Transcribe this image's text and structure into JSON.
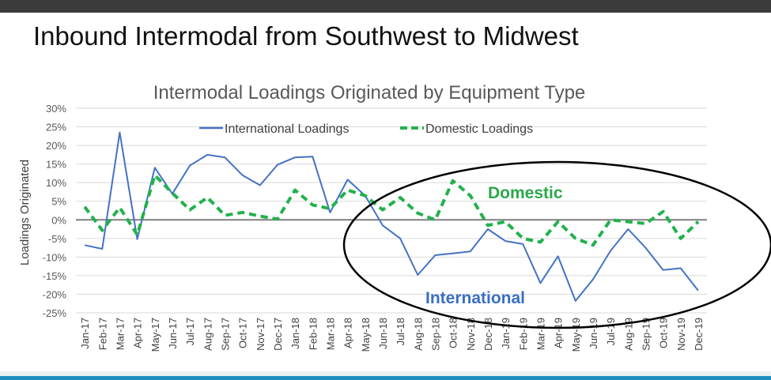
{
  "slide": {
    "title": "Inbound Intermodal from Southwest to Midwest"
  },
  "colors": {
    "top_bar": "#3b3b3b",
    "bottom_bar": "#1f8fc0",
    "international": "#4472c4",
    "domestic": "#22b14c",
    "domestic_label": "#2aa84a",
    "international_label": "#3a6fc4",
    "grid": "#d9d9d9",
    "zero_line": "#7f7f7f"
  },
  "annotations": {
    "domestic": "Domestic",
    "international": "International"
  },
  "chart_data": {
    "type": "line",
    "title": "Intermodal Loadings Originated by Equipment Type",
    "xlabel": "",
    "ylabel": "Loadings Originated",
    "ylim": [
      -25,
      30
    ],
    "yticks": [
      30,
      25,
      20,
      15,
      10,
      5,
      0,
      -5,
      -10,
      -15,
      -20,
      -25
    ],
    "ytick_labels": [
      "30%",
      "25%",
      "20%",
      "15%",
      "10%",
      "5%",
      "0%",
      "-5%",
      "-10%",
      "-15%",
      "-20%",
      "-25%"
    ],
    "grid": true,
    "legend_placement": "top",
    "categories": [
      "Jan-17",
      "Feb-17",
      "Mar-17",
      "Apr-17",
      "May-17",
      "Jun-17",
      "Jul-17",
      "Aug-17",
      "Sep-17",
      "Oct-17",
      "Nov-17",
      "Dec-17",
      "Jan-18",
      "Feb-18",
      "Mar-18",
      "Apr-18",
      "May-18",
      "Jun-18",
      "Jul-18",
      "Aug-18",
      "Sep-18",
      "Oct-18",
      "Nov-18",
      "Dec-18",
      "Jan-19",
      "Feb-19",
      "Mar-19",
      "Apr-19",
      "May-19",
      "Jun-19",
      "Jul-19",
      "Aug-19",
      "Sep-19",
      "Oct-19",
      "Nov-19",
      "Dec-19"
    ],
    "series": [
      {
        "name": "International Loadings",
        "style": "solid",
        "values": [
          -6.8,
          -7.8,
          23.5,
          -5.2,
          14.0,
          7.0,
          14.6,
          17.5,
          16.8,
          12.0,
          9.3,
          14.8,
          16.8,
          17.0,
          2.0,
          10.8,
          6.5,
          -1.5,
          -5.0,
          -14.8,
          -9.5,
          -9.0,
          -8.5,
          -2.5,
          -5.7,
          -6.5,
          -17.0,
          -9.8,
          -21.8,
          -16.0,
          -8.3,
          -2.5,
          -7.5,
          -13.5,
          -13.0,
          -19.0
        ]
      },
      {
        "name": "Domestic Loadings",
        "style": "dashed",
        "values": [
          3.5,
          -2.8,
          3.3,
          -4.0,
          12.0,
          7.2,
          2.7,
          6.0,
          1.2,
          2.0,
          1.0,
          0.2,
          8.0,
          4.0,
          3.0,
          8.0,
          6.5,
          2.7,
          6.0,
          1.8,
          0.0,
          10.5,
          6.5,
          -1.5,
          -0.5,
          -5.0,
          -6.0,
          -0.5,
          -5.0,
          -6.8,
          0.0,
          -0.5,
          -1.0,
          2.2,
          -5.0,
          -0.5
        ]
      }
    ]
  }
}
